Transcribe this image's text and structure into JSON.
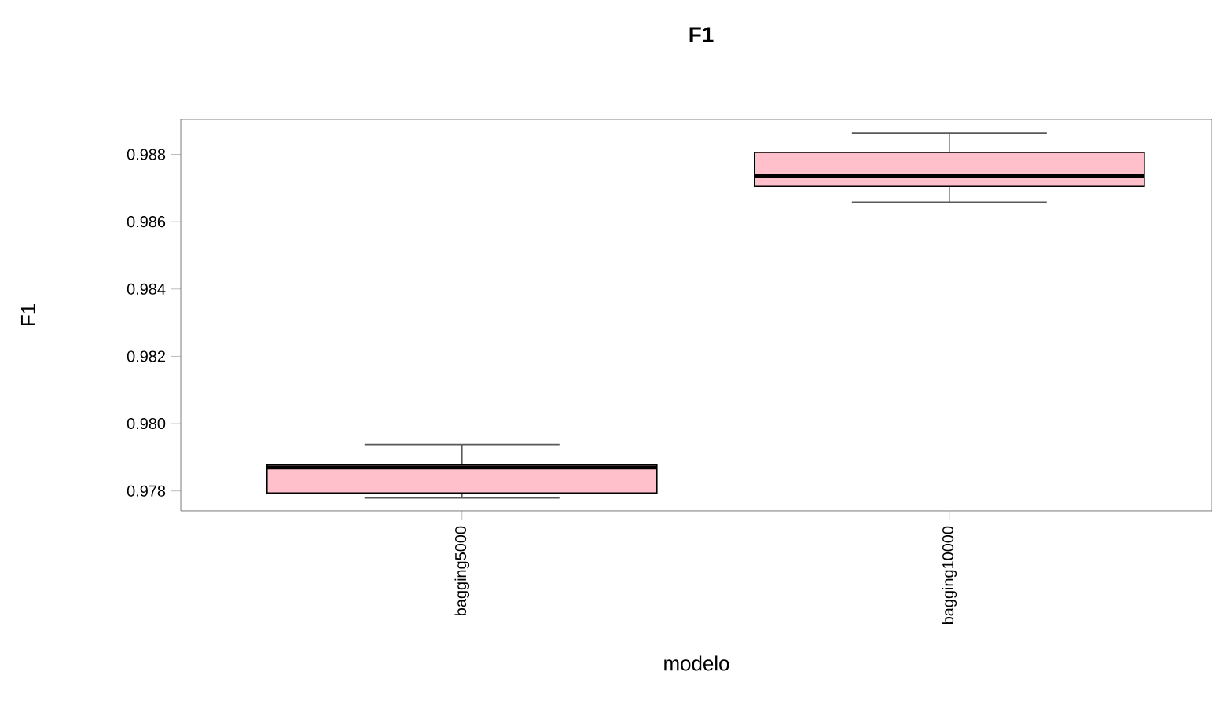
{
  "chart_data": {
    "type": "box",
    "title": "F1",
    "xlabel": "modelo",
    "ylabel": "F1",
    "categories": [
      "bagging5000",
      "bagging10000"
    ],
    "ylim": [
      0.97741,
      0.98904
    ],
    "yticks": [
      0.978,
      {
        "value": 0.98,
        "label": "0.980"
      },
      0.982,
      0.984,
      0.986,
      0.988
    ],
    "series": [
      {
        "color": "#ffc0cb",
        "boxes": [
          {
            "low": 0.97779,
            "q1": 0.97794,
            "median": 0.9787,
            "q3": 0.97878,
            "high": 0.97938
          },
          {
            "low": 0.98658,
            "q1": 0.98705,
            "median": 0.98737,
            "q3": 0.98806,
            "high": 0.98864
          }
        ]
      }
    ]
  }
}
